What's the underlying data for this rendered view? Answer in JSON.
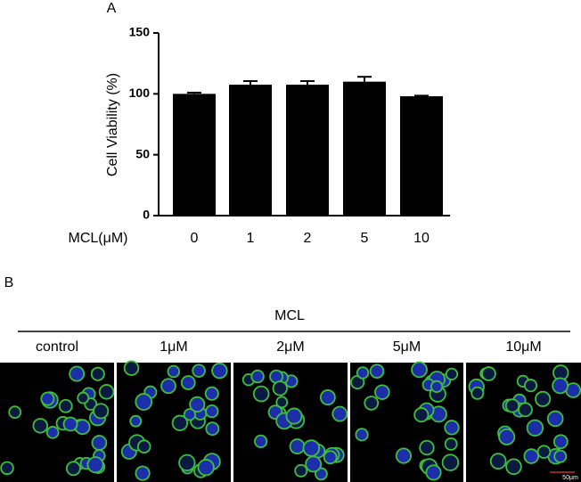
{
  "chart_data": {
    "type": "bar",
    "panel_label": "A",
    "y_label": "Cell Viability (%)",
    "x_label": "MCL(μM)",
    "categories": [
      "0",
      "1",
      "2",
      "5",
      "10"
    ],
    "values": [
      100,
      107.5,
      107.5,
      110,
      98
    ],
    "errors": [
      1,
      3,
      3,
      4,
      0.5
    ],
    "color": "#000000",
    "ylim": [
      0,
      150
    ],
    "yticks": [
      0,
      50,
      100,
      150
    ],
    "grid": false
  },
  "panel_b": {
    "panel_label": "B",
    "title": "MCL",
    "columns": [
      "control",
      "1μM",
      "2μM",
      "5μM",
      "10μM"
    ],
    "scale_bar": "50μm"
  }
}
